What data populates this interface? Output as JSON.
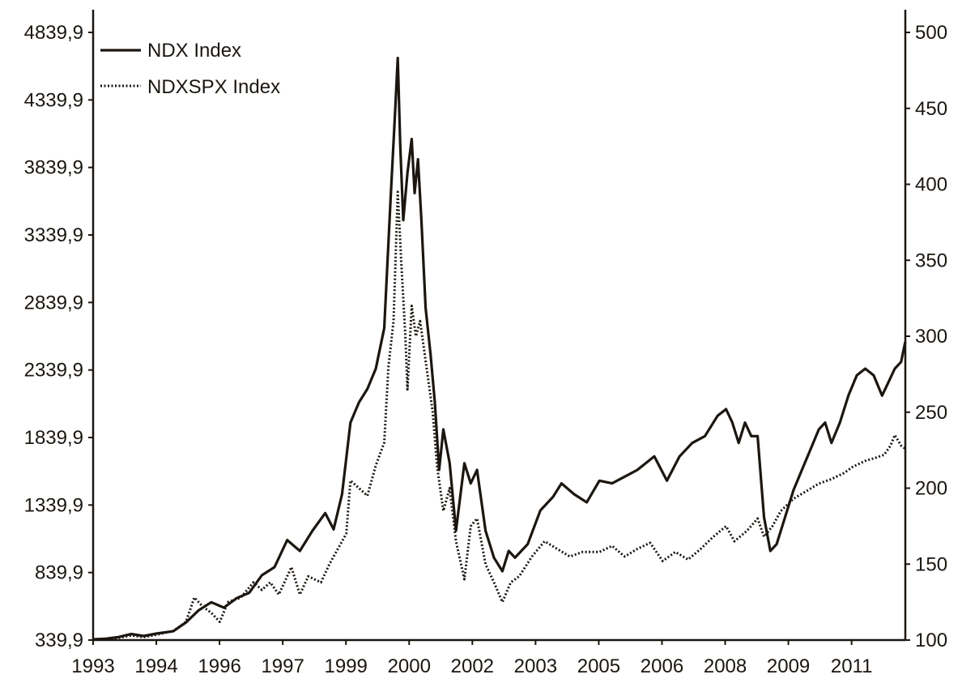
{
  "chart_data": {
    "type": "line",
    "title": "",
    "xlabel": "",
    "ylabel": "",
    "legend_position": "top-left",
    "grid": false,
    "x_tick_labels": [
      "1993",
      "1994",
      "1996",
      "1997",
      "1999",
      "2000",
      "2002",
      "2003",
      "2005",
      "2006",
      "2008",
      "2009",
      "2011"
    ],
    "x_range": [
      1993.0,
      2012.25
    ],
    "y_left": {
      "range": [
        339.9,
        4839.9
      ],
      "ticks": [
        339.9,
        839.9,
        1339.9,
        1839.9,
        2339.9,
        2839.9,
        3339.9,
        3839.9,
        4339.9,
        4839.9
      ],
      "tick_labels": [
        "339,9",
        "839,9",
        "1339,9",
        "1839,9",
        "2339,9",
        "2839,9",
        "3339,9",
        "3839,9",
        "4339,9",
        "4839,9"
      ]
    },
    "y_right": {
      "range": [
        100,
        500
      ],
      "ticks": [
        100,
        150,
        200,
        250,
        300,
        350,
        400,
        450,
        500
      ],
      "tick_labels": [
        "100",
        "150",
        "200",
        "250",
        "300",
        "350",
        "400",
        "450",
        "500"
      ]
    },
    "series": [
      {
        "name": "NDX Index",
        "axis": "left",
        "style": "solid",
        "color": "#1b1610",
        "points": [
          [
            1993.0,
            345
          ],
          [
            1993.3,
            350
          ],
          [
            1993.6,
            362
          ],
          [
            1993.9,
            385
          ],
          [
            1994.2,
            370
          ],
          [
            1994.5,
            388
          ],
          [
            1994.9,
            405
          ],
          [
            1995.2,
            470
          ],
          [
            1995.5,
            560
          ],
          [
            1995.8,
            620
          ],
          [
            1996.1,
            580
          ],
          [
            1996.4,
            650
          ],
          [
            1996.7,
            690
          ],
          [
            1997.0,
            820
          ],
          [
            1997.3,
            880
          ],
          [
            1997.6,
            1080
          ],
          [
            1997.9,
            1000
          ],
          [
            1998.2,
            1150
          ],
          [
            1998.5,
            1280
          ],
          [
            1998.7,
            1160
          ],
          [
            1998.9,
            1420
          ],
          [
            1999.1,
            1950
          ],
          [
            1999.3,
            2100
          ],
          [
            1999.5,
            2200
          ],
          [
            1999.7,
            2350
          ],
          [
            1999.9,
            2650
          ],
          [
            2000.05,
            3600
          ],
          [
            2000.15,
            4200
          ],
          [
            2000.22,
            4650
          ],
          [
            2000.28,
            4000
          ],
          [
            2000.35,
            3450
          ],
          [
            2000.45,
            3800
          ],
          [
            2000.55,
            4050
          ],
          [
            2000.62,
            3650
          ],
          [
            2000.7,
            3900
          ],
          [
            2000.78,
            3450
          ],
          [
            2000.88,
            2800
          ],
          [
            2001.0,
            2450
          ],
          [
            2001.1,
            2100
          ],
          [
            2001.2,
            1600
          ],
          [
            2001.3,
            1900
          ],
          [
            2001.45,
            1650
          ],
          [
            2001.6,
            1150
          ],
          [
            2001.8,
            1650
          ],
          [
            2001.95,
            1500
          ],
          [
            2002.1,
            1600
          ],
          [
            2002.3,
            1150
          ],
          [
            2002.5,
            950
          ],
          [
            2002.7,
            850
          ],
          [
            2002.85,
            1000
          ],
          [
            2003.0,
            950
          ],
          [
            2003.3,
            1050
          ],
          [
            2003.6,
            1300
          ],
          [
            2003.9,
            1400
          ],
          [
            2004.1,
            1500
          ],
          [
            2004.4,
            1420
          ],
          [
            2004.7,
            1360
          ],
          [
            2005.0,
            1520
          ],
          [
            2005.3,
            1500
          ],
          [
            2005.6,
            1550
          ],
          [
            2005.9,
            1600
          ],
          [
            2006.3,
            1700
          ],
          [
            2006.6,
            1520
          ],
          [
            2006.9,
            1700
          ],
          [
            2007.2,
            1800
          ],
          [
            2007.5,
            1850
          ],
          [
            2007.8,
            2000
          ],
          [
            2008.0,
            2050
          ],
          [
            2008.15,
            1950
          ],
          [
            2008.3,
            1800
          ],
          [
            2008.45,
            1950
          ],
          [
            2008.6,
            1850
          ],
          [
            2008.75,
            1850
          ],
          [
            2008.9,
            1250
          ],
          [
            2009.05,
            1000
          ],
          [
            2009.2,
            1050
          ],
          [
            2009.4,
            1250
          ],
          [
            2009.6,
            1450
          ],
          [
            2009.8,
            1600
          ],
          [
            2010.0,
            1750
          ],
          [
            2010.2,
            1900
          ],
          [
            2010.35,
            1950
          ],
          [
            2010.5,
            1800
          ],
          [
            2010.7,
            1950
          ],
          [
            2010.9,
            2150
          ],
          [
            2011.1,
            2300
          ],
          [
            2011.3,
            2350
          ],
          [
            2011.5,
            2300
          ],
          [
            2011.7,
            2150
          ],
          [
            2011.85,
            2250
          ],
          [
            2012.0,
            2350
          ],
          [
            2012.15,
            2400
          ],
          [
            2012.25,
            2550
          ]
        ]
      },
      {
        "name": "NDXSPX Index",
        "axis": "right",
        "style": "dotted",
        "color": "#1b1610",
        "points": [
          [
            1993.0,
            100.5
          ],
          [
            1993.3,
            100.8
          ],
          [
            1993.6,
            101.5
          ],
          [
            1993.9,
            103
          ],
          [
            1994.2,
            102
          ],
          [
            1994.5,
            103.5
          ],
          [
            1994.9,
            106
          ],
          [
            1995.2,
            112
          ],
          [
            1995.4,
            128
          ],
          [
            1995.6,
            122
          ],
          [
            1995.8,
            118
          ],
          [
            1996.0,
            112
          ],
          [
            1996.2,
            125
          ],
          [
            1996.5,
            128
          ],
          [
            1996.8,
            138
          ],
          [
            1997.0,
            133
          ],
          [
            1997.2,
            138
          ],
          [
            1997.4,
            130
          ],
          [
            1997.7,
            148
          ],
          [
            1997.9,
            130
          ],
          [
            1998.1,
            142
          ],
          [
            1998.4,
            138
          ],
          [
            1998.6,
            150
          ],
          [
            1998.8,
            160
          ],
          [
            1999.0,
            170
          ],
          [
            1999.1,
            205
          ],
          [
            1999.3,
            200
          ],
          [
            1999.5,
            195
          ],
          [
            1999.7,
            215
          ],
          [
            1999.9,
            230
          ],
          [
            2000.0,
            280
          ],
          [
            2000.12,
            310
          ],
          [
            2000.22,
            395
          ],
          [
            2000.3,
            350
          ],
          [
            2000.4,
            300
          ],
          [
            2000.45,
            265
          ],
          [
            2000.55,
            320
          ],
          [
            2000.65,
            300
          ],
          [
            2000.75,
            310
          ],
          [
            2000.85,
            290
          ],
          [
            2000.95,
            270
          ],
          [
            2001.05,
            250
          ],
          [
            2001.15,
            215
          ],
          [
            2001.3,
            185
          ],
          [
            2001.45,
            200
          ],
          [
            2001.6,
            165
          ],
          [
            2001.8,
            140
          ],
          [
            2001.95,
            175
          ],
          [
            2002.1,
            180
          ],
          [
            2002.3,
            150
          ],
          [
            2002.5,
            138
          ],
          [
            2002.7,
            125
          ],
          [
            2002.9,
            138
          ],
          [
            2003.1,
            142
          ],
          [
            2003.4,
            155
          ],
          [
            2003.7,
            165
          ],
          [
            2004.0,
            160
          ],
          [
            2004.3,
            155
          ],
          [
            2004.6,
            158
          ],
          [
            2005.0,
            158
          ],
          [
            2005.3,
            162
          ],
          [
            2005.6,
            155
          ],
          [
            2005.9,
            160
          ],
          [
            2006.2,
            164
          ],
          [
            2006.5,
            152
          ],
          [
            2006.8,
            158
          ],
          [
            2007.1,
            153
          ],
          [
            2007.4,
            160
          ],
          [
            2007.7,
            168
          ],
          [
            2008.0,
            175
          ],
          [
            2008.2,
            165
          ],
          [
            2008.5,
            172
          ],
          [
            2008.75,
            180
          ],
          [
            2008.9,
            168
          ],
          [
            2009.1,
            175
          ],
          [
            2009.3,
            185
          ],
          [
            2009.6,
            193
          ],
          [
            2009.9,
            198
          ],
          [
            2010.2,
            203
          ],
          [
            2010.5,
            206
          ],
          [
            2010.8,
            210
          ],
          [
            2011.0,
            214
          ],
          [
            2011.3,
            218
          ],
          [
            2011.55,
            220
          ],
          [
            2011.75,
            222
          ],
          [
            2011.9,
            228
          ],
          [
            2012.0,
            235
          ],
          [
            2012.15,
            228
          ],
          [
            2012.25,
            226
          ]
        ]
      }
    ]
  }
}
